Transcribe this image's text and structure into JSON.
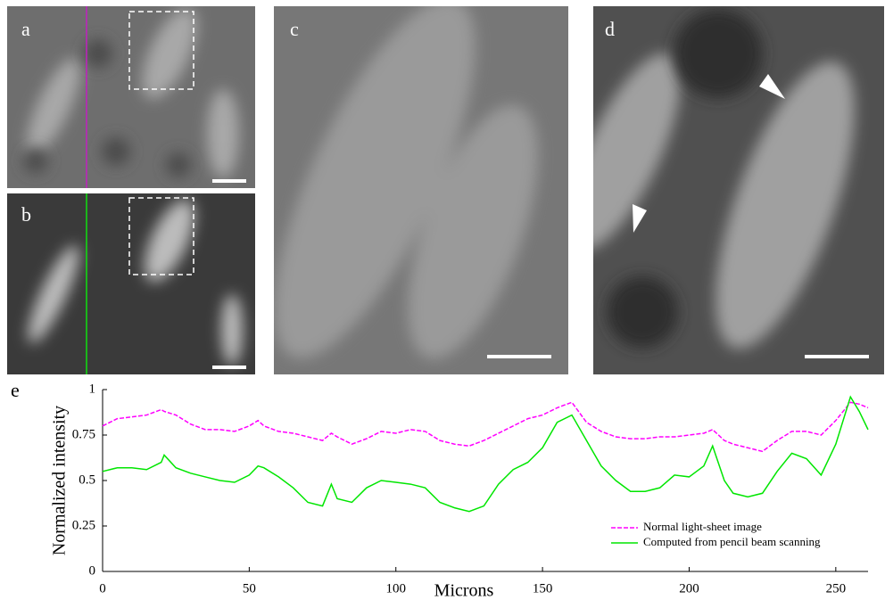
{
  "panel_labels": [
    "a",
    "b",
    "c",
    "d",
    "e"
  ],
  "chart_data": {
    "type": "line",
    "xlabel": "Microns",
    "ylabel": "Normalized  intensity",
    "x": [
      0,
      5,
      10,
      15,
      20,
      21,
      25,
      30,
      35,
      40,
      45,
      50,
      53,
      55,
      60,
      65,
      70,
      75,
      78,
      80,
      85,
      90,
      95,
      100,
      105,
      110,
      115,
      120,
      125,
      130,
      135,
      140,
      145,
      150,
      155,
      160,
      165,
      170,
      175,
      180,
      185,
      190,
      195,
      200,
      205,
      208,
      212,
      215,
      220,
      225,
      230,
      235,
      240,
      245,
      250,
      255,
      258,
      261
    ],
    "series": [
      {
        "name": "Normal light-sheet image",
        "color": "#ff00ff",
        "dash": true,
        "values": [
          0.8,
          0.84,
          0.85,
          0.86,
          0.89,
          0.88,
          0.86,
          0.81,
          0.78,
          0.78,
          0.77,
          0.8,
          0.83,
          0.8,
          0.77,
          0.76,
          0.74,
          0.72,
          0.76,
          0.74,
          0.7,
          0.73,
          0.77,
          0.76,
          0.78,
          0.77,
          0.72,
          0.7,
          0.69,
          0.72,
          0.76,
          0.8,
          0.84,
          0.86,
          0.9,
          0.93,
          0.82,
          0.77,
          0.74,
          0.73,
          0.73,
          0.74,
          0.74,
          0.75,
          0.76,
          0.78,
          0.72,
          0.7,
          0.68,
          0.66,
          0.72,
          0.77,
          0.77,
          0.75,
          0.83,
          0.93,
          0.92,
          0.9
        ]
      },
      {
        "name": "Computed from pencil beam scanning",
        "color": "#00e600",
        "dash": false,
        "values": [
          0.55,
          0.57,
          0.57,
          0.56,
          0.6,
          0.64,
          0.57,
          0.54,
          0.52,
          0.5,
          0.49,
          0.53,
          0.58,
          0.57,
          0.52,
          0.46,
          0.38,
          0.36,
          0.48,
          0.4,
          0.38,
          0.46,
          0.5,
          0.49,
          0.48,
          0.46,
          0.38,
          0.35,
          0.33,
          0.36,
          0.48,
          0.56,
          0.6,
          0.68,
          0.82,
          0.86,
          0.72,
          0.58,
          0.5,
          0.44,
          0.44,
          0.46,
          0.53,
          0.52,
          0.58,
          0.69,
          0.5,
          0.43,
          0.41,
          0.43,
          0.55,
          0.65,
          0.62,
          0.53,
          0.7,
          0.96,
          0.88,
          0.78
        ]
      }
    ],
    "xlim": [
      0,
      261
    ],
    "ylim": [
      0,
      1
    ],
    "xticks": [
      0,
      50,
      100,
      150,
      200,
      250
    ],
    "yticks": [
      0,
      0.25,
      0.5,
      0.75,
      1
    ],
    "legend": "lower right"
  }
}
